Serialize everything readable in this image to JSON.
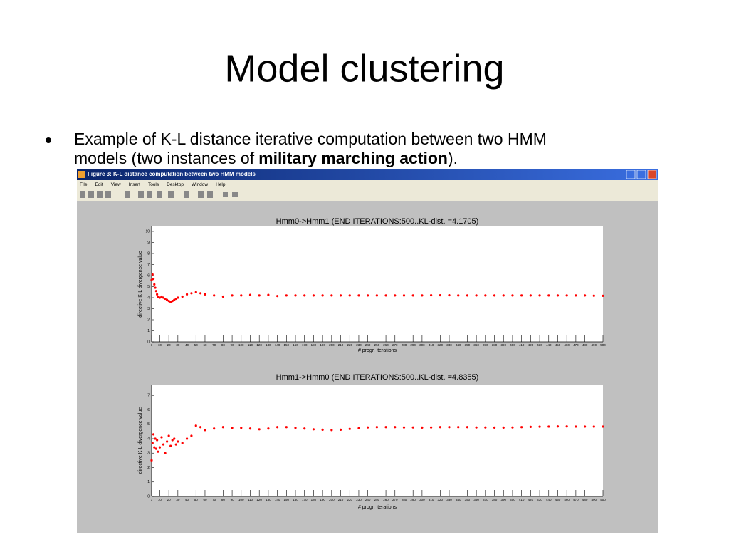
{
  "slide": {
    "title": "Model clustering",
    "bullet": {
      "line1": "Example of K-L distance iterative computation between two HMM",
      "line2": "models (two instances of",
      "bold": "military marching action",
      "end": ")."
    }
  },
  "window": {
    "title": "Figure 3: K-L distance computation between two HMM models",
    "menu": [
      "File",
      "Edit",
      "View",
      "Insert",
      "Tools",
      "Desktop",
      "Window",
      "Help"
    ]
  },
  "chart_data": [
    {
      "type": "scatter",
      "title": "Hmm0->Hmm1 (END ITERATIONS:500..KL-dist. =4.1705)",
      "x_label": "# progr. iterations",
      "y_label": "directive K-L divergence value",
      "color": "#ff0000",
      "xlim": [
        1,
        500
      ],
      "ylim": [
        0,
        10.45
      ],
      "xticks": [
        1,
        10,
        20,
        30,
        40,
        50,
        60,
        70,
        80,
        90,
        100,
        110,
        120,
        130,
        140,
        150,
        160,
        170,
        180,
        190,
        200,
        210,
        220,
        230,
        240,
        250,
        260,
        270,
        280,
        290,
        300,
        310,
        320,
        330,
        340,
        350,
        360,
        370,
        380,
        390,
        400,
        410,
        420,
        430,
        440,
        450,
        460,
        470,
        480,
        490,
        500
      ],
      "yticks": [
        0,
        1,
        2,
        3,
        4,
        5,
        6,
        7,
        8,
        9,
        10
      ],
      "x": [
        1,
        2,
        3,
        4,
        5,
        6,
        7,
        8,
        10,
        12,
        14,
        16,
        18,
        20,
        22,
        24,
        26,
        28,
        30,
        35,
        40,
        45,
        50,
        55,
        60,
        70,
        80,
        90,
        100,
        110,
        120,
        130,
        140,
        150,
        160,
        170,
        180,
        190,
        200,
        210,
        220,
        230,
        240,
        250,
        260,
        270,
        280,
        290,
        300,
        310,
        320,
        330,
        340,
        350,
        360,
        370,
        380,
        390,
        400,
        410,
        420,
        430,
        440,
        450,
        460,
        470,
        480,
        490,
        500
      ],
      "values": [
        5.6,
        6.1,
        5.7,
        5.2,
        4.9,
        4.6,
        4.3,
        4.1,
        4.0,
        4.1,
        4.0,
        3.9,
        3.8,
        3.7,
        3.6,
        3.7,
        3.8,
        3.9,
        4.0,
        4.1,
        4.3,
        4.4,
        4.5,
        4.4,
        4.3,
        4.2,
        4.1,
        4.2,
        4.2,
        4.25,
        4.2,
        4.25,
        4.15,
        4.2,
        4.2,
        4.2,
        4.2,
        4.2,
        4.2,
        4.2,
        4.2,
        4.2,
        4.2,
        4.2,
        4.2,
        4.2,
        4.2,
        4.2,
        4.2,
        4.22,
        4.22,
        4.22,
        4.2,
        4.2,
        4.2,
        4.2,
        4.2,
        4.2,
        4.2,
        4.2,
        4.2,
        4.2,
        4.2,
        4.2,
        4.2,
        4.2,
        4.2,
        4.18,
        4.17
      ]
    },
    {
      "type": "scatter",
      "title": "Hmm1->Hmm0 (END ITERATIONS:500..KL-dist. =4.8355)",
      "x_label": "# progr. iterations",
      "y_label": "directive K-L divergence value",
      "color": "#ff0000",
      "xlim": [
        1,
        500
      ],
      "ylim": [
        0,
        7.75
      ],
      "xticks": [
        1,
        10,
        20,
        30,
        40,
        50,
        60,
        70,
        80,
        90,
        100,
        110,
        120,
        130,
        140,
        150,
        160,
        170,
        180,
        190,
        200,
        210,
        220,
        230,
        240,
        250,
        260,
        270,
        280,
        290,
        300,
        310,
        320,
        330,
        340,
        350,
        360,
        370,
        380,
        390,
        400,
        410,
        420,
        430,
        440,
        450,
        460,
        470,
        480,
        490,
        500
      ],
      "yticks": [
        0,
        1,
        2,
        3,
        4,
        5,
        6,
        7
      ],
      "x": [
        1,
        2,
        3,
        4,
        5,
        6,
        7,
        8,
        10,
        12,
        14,
        16,
        18,
        20,
        22,
        24,
        26,
        28,
        30,
        35,
        40,
        45,
        50,
        55,
        60,
        70,
        80,
        90,
        100,
        110,
        120,
        130,
        140,
        150,
        160,
        170,
        180,
        190,
        200,
        210,
        220,
        230,
        240,
        250,
        260,
        270,
        280,
        290,
        300,
        310,
        320,
        330,
        340,
        350,
        360,
        370,
        380,
        390,
        400,
        410,
        420,
        430,
        440,
        450,
        460,
        470,
        480,
        490,
        500
      ],
      "values": [
        2.5,
        3.7,
        4.3,
        3.4,
        4.0,
        3.3,
        3.9,
        3.1,
        3.4,
        4.1,
        3.6,
        3.0,
        3.8,
        4.2,
        3.5,
        3.9,
        4.0,
        3.6,
        3.8,
        3.7,
        4.0,
        4.2,
        4.9,
        4.8,
        4.6,
        4.7,
        4.8,
        4.75,
        4.75,
        4.7,
        4.65,
        4.7,
        4.8,
        4.8,
        4.75,
        4.7,
        4.65,
        4.62,
        4.6,
        4.62,
        4.68,
        4.72,
        4.78,
        4.8,
        4.8,
        4.8,
        4.78,
        4.78,
        4.77,
        4.78,
        4.8,
        4.8,
        4.8,
        4.8,
        4.78,
        4.78,
        4.77,
        4.77,
        4.78,
        4.8,
        4.82,
        4.83,
        4.84,
        4.85,
        4.85,
        4.84,
        4.84,
        4.84,
        4.84
      ]
    }
  ]
}
